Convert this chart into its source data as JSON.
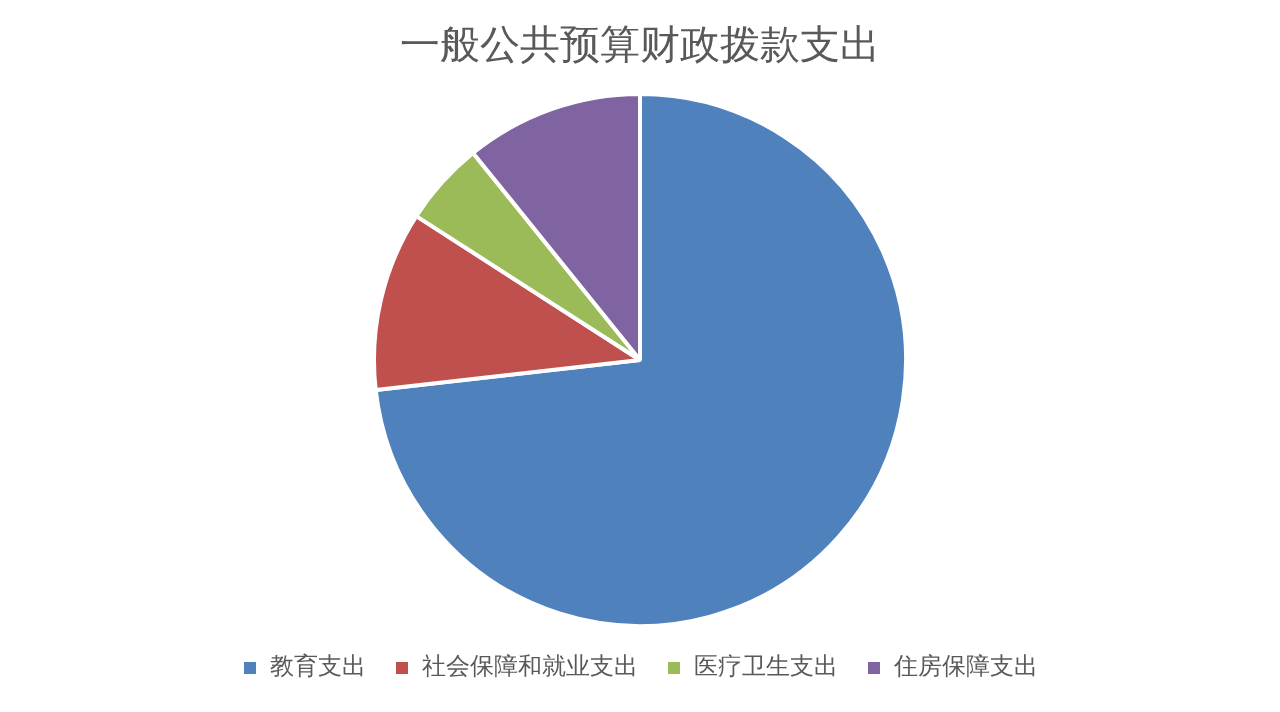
{
  "chart_data": {
    "type": "pie",
    "title": "一般公共预算财政拨款支出",
    "categories": [
      "教育支出",
      "社会保障和就业支出",
      "医疗卫生支出",
      "住房保障支出"
    ],
    "values": [
      73.2,
      10.9,
      5.1,
      10.8
    ],
    "colors": [
      "#4f81bd",
      "#c0504d",
      "#9bbb59",
      "#8064a2"
    ],
    "legend": "bottom"
  }
}
